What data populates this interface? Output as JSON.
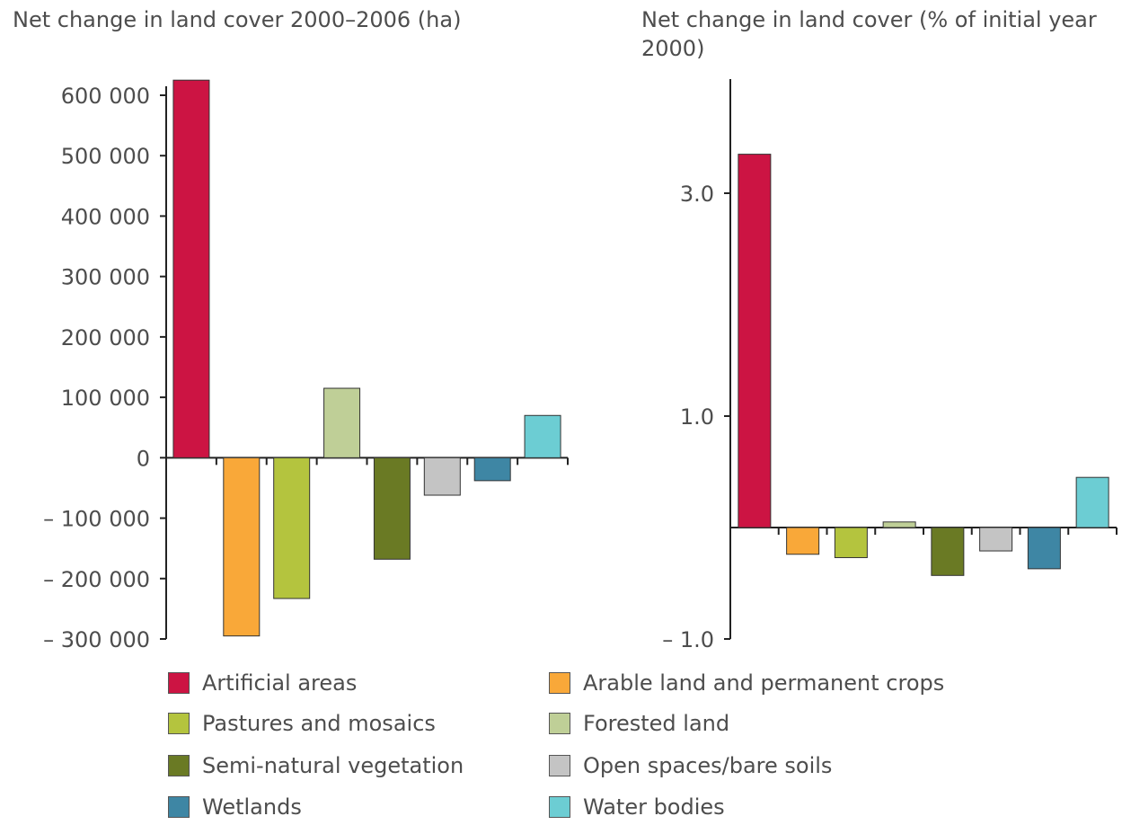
{
  "categories": [
    {
      "name": "Artificial areas",
      "color": "#cc1443"
    },
    {
      "name": "Arable land and permanent crops",
      "color": "#f9a839"
    },
    {
      "name": "Pastures and mosaics",
      "color": "#b4c43e"
    },
    {
      "name": "Forested land",
      "color": "#bfcf97"
    },
    {
      "name": "Semi-natural vegetation",
      "color": "#6a7a24"
    },
    {
      "name": "Open spaces/bare soils",
      "color": "#c4c4c4"
    },
    {
      "name": "Wetlands",
      "color": "#3e86a4"
    },
    {
      "name": "Water bodies",
      "color": "#6ccdd3"
    }
  ],
  "chart_data": [
    {
      "type": "bar",
      "title": "Net change in land cover 2000–2006 (ha)",
      "categories": [
        "Artificial areas",
        "Arable land and permanent crops",
        "Pastures and mosaics",
        "Forested land",
        "Semi-natural vegetation",
        "Open spaces/bare soils",
        "Wetlands",
        "Water bodies"
      ],
      "values": [
        625000,
        -295000,
        -233000,
        115000,
        -168000,
        -62000,
        -38000,
        70000
      ],
      "ylim": [
        -300000,
        600000
      ],
      "yticks": [
        600000,
        500000,
        400000,
        300000,
        200000,
        100000,
        0,
        -100000,
        -200000,
        -300000
      ],
      "ytick_labels": [
        "600 000",
        "500 000",
        "400 000",
        "300 000",
        "200 000",
        "100 000",
        "0",
        "– 100 000",
        "– 200 000",
        "– 300 000"
      ],
      "grid": false
    },
    {
      "type": "bar",
      "title": "Net change in land cover (% of initial year 2000)",
      "categories": [
        "Artificial areas",
        "Arable land and permanent crops",
        "Pastures and mosaics",
        "Forested land",
        "Semi-natural vegetation",
        "Open spaces/bare soils",
        "Wetlands",
        "Water bodies"
      ],
      "values": [
        3.35,
        -0.24,
        -0.27,
        0.05,
        -0.43,
        -0.21,
        -0.37,
        0.45
      ],
      "ylim": [
        -1.0,
        3.0
      ],
      "yticks": [
        3.0,
        1.0,
        -1.0
      ],
      "ytick_labels": [
        "3.0",
        "1.0",
        "– 1.0"
      ],
      "grid": false
    }
  ]
}
